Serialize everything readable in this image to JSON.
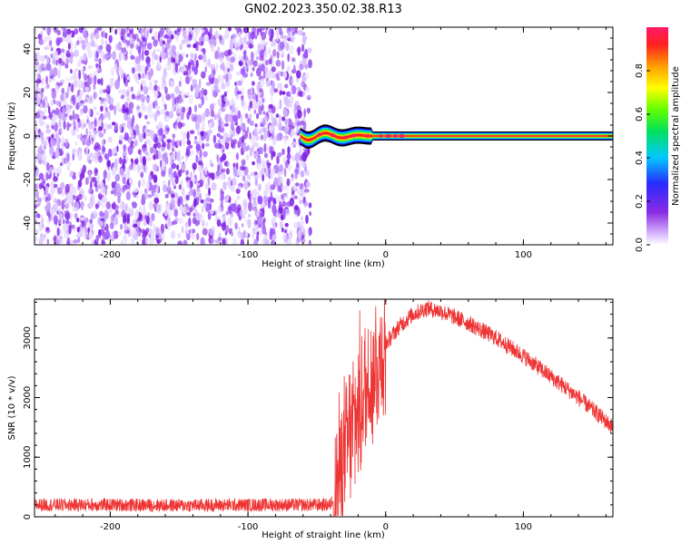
{
  "title": "GN02.2023.350.02.38.R13",
  "chart_data": [
    {
      "type": "heatmap",
      "xlabel": "Height of straight line (km)",
      "ylabel": "Frequency (Hz)",
      "xlim": [
        -255,
        165
      ],
      "ylim": [
        -50,
        50
      ],
      "x_ticks": [
        -200,
        -100,
        0,
        100
      ],
      "y_ticks": [
        -40,
        -20,
        0,
        20,
        40
      ],
      "noise_region_x": [
        -255,
        -60
      ],
      "carrier": {
        "onset_x": -62,
        "frequency": 0,
        "wobble_x_range": [
          -62,
          -10
        ],
        "wobble_amplitude_hz": 3
      },
      "colorbar": {
        "label": "Normalized spectral amplitude",
        "range": [
          0,
          1
        ],
        "ticks": [
          "0.0",
          "0.2",
          "0.4",
          "0.6",
          "0.8"
        ]
      }
    },
    {
      "type": "line",
      "xlabel": "Height of straight line (km)",
      "ylabel": "SNR (10 * v/v)",
      "xlim": [
        -255,
        165
      ],
      "ylim": [
        0,
        3650
      ],
      "x_ticks": [
        -200,
        -100,
        0,
        100
      ],
      "y_ticks": [
        0,
        1000,
        2000,
        3000
      ],
      "color": "#ee3333",
      "series": [
        {
          "x": [
            -255,
            -200,
            -150,
            -100,
            -60,
            -40,
            -30,
            -20,
            -10,
            0,
            10,
            20,
            30,
            40,
            60,
            80,
            100,
            120,
            140,
            165
          ],
          "values": [
            200,
            200,
            190,
            200,
            200,
            200,
            1000,
            1800,
            2400,
            2900,
            3200,
            3400,
            3500,
            3450,
            3250,
            3000,
            2700,
            2350,
            2000,
            1500
          ]
        }
      ]
    }
  ]
}
